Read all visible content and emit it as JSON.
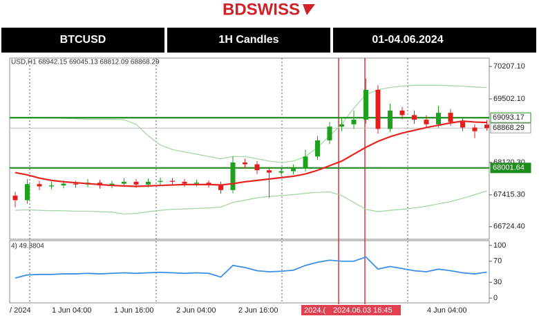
{
  "header": {
    "logo": "BDSWISS",
    "symbol": "BTCUSD",
    "timeframe": "1H Candles",
    "dates": "01-04.06.2024"
  },
  "chart_data": [
    {
      "type": "candlestick",
      "info": "USD,H1  68942.15 69045.13 68812.09 68868.29",
      "open": [
        67400,
        67300,
        67650,
        67600,
        67620,
        67660,
        67640,
        67680,
        67620,
        67660,
        67700,
        67640,
        67700,
        67720,
        67700,
        67660,
        67680,
        67640,
        67520,
        68120,
        68080,
        67950,
        67900,
        67930,
        67990,
        68250,
        68600,
        68900,
        68950,
        69050,
        69700,
        68850,
        69250,
        69150,
        69050,
        68950,
        69200,
        69000,
        68880,
        68942.15
      ],
      "high": [
        67480,
        67760,
        67720,
        67700,
        67730,
        67720,
        67760,
        67740,
        67720,
        67780,
        67760,
        67770,
        67790,
        67780,
        67760,
        67750,
        67730,
        67700,
        68250,
        68200,
        68150,
        68020,
        68000,
        68080,
        68400,
        68700,
        69000,
        69100,
        69250,
        69950,
        69800,
        69400,
        69330,
        69250,
        69150,
        69350,
        69280,
        69100,
        68950,
        69045.13
      ],
      "low": [
        67150,
        67220,
        67520,
        67540,
        67560,
        67570,
        67580,
        67550,
        67560,
        67590,
        67570,
        67580,
        67630,
        67630,
        67590,
        67600,
        67570,
        67440,
        67450,
        67990,
        67870,
        67350,
        67830,
        67860,
        67920,
        68180,
        68520,
        68800,
        68850,
        68960,
        68750,
        68780,
        69060,
        68960,
        68870,
        68880,
        68920,
        68800,
        68650,
        68812.09
      ],
      "close": [
        67300,
        67650,
        67600,
        67620,
        67660,
        67640,
        67680,
        67620,
        67660,
        67700,
        67640,
        67700,
        67720,
        67700,
        67660,
        67680,
        67640,
        67520,
        68120,
        68080,
        67950,
        67900,
        67930,
        67990,
        68250,
        68600,
        68900,
        68950,
        69050,
        69700,
        68850,
        69250,
        69150,
        69050,
        68950,
        69200,
        69000,
        68880,
        68800,
        68868.29
      ],
      "up_color": "#1fa01f",
      "down_color": "#e0201e",
      "series": [
        {
          "color": "#e8231f",
          "values": [
            67900,
            67850,
            67780,
            67730,
            67700,
            67680,
            67660,
            67640,
            67620,
            67610,
            67600,
            67610,
            67620,
            67630,
            67640,
            67640,
            67640,
            67630,
            67660,
            67700,
            67730,
            67760,
            67790,
            67820,
            67870,
            67950,
            68050,
            68150,
            68300,
            68450,
            68580,
            68680,
            68760,
            68820,
            68880,
            68930,
            68980,
            69020,
            69000,
            68990
          ]
        },
        {
          "color": "#9fd49f",
          "values": [
            69100,
            69100,
            69100,
            69090,
            69080,
            69070,
            69060,
            69060,
            69060,
            69050,
            68950,
            68700,
            68500,
            68400,
            68350,
            68300,
            68250,
            68200,
            68250,
            68250,
            68200,
            68150,
            68120,
            68150,
            68250,
            68450,
            68700,
            68950,
            69300,
            69600,
            69700,
            69750,
            69780,
            69800,
            69800,
            69800,
            69790,
            69780,
            69760,
            69750
          ]
        },
        {
          "color": "#9fd49f",
          "values": [
            67080,
            67090,
            67080,
            67070,
            67070,
            67060,
            67060,
            67050,
            67040,
            67000,
            67010,
            67050,
            67080,
            67100,
            67110,
            67120,
            67130,
            67150,
            67250,
            67300,
            67350,
            67380,
            67400,
            67420,
            67450,
            67470,
            67480,
            67400,
            67250,
            67100,
            67050,
            67080,
            67100,
            67130,
            67170,
            67220,
            67270,
            67340,
            67420,
            67500
          ]
        }
      ],
      "levels": [
        {
          "value": 69093.17,
          "color": "#1e8c1e"
        },
        {
          "value": 68001.64,
          "color": "#1e8c1e"
        }
      ],
      "last_price": 68868.29,
      "ylim": [
        66450,
        70390
      ],
      "yticks": [
        {
          "value": 70207.1,
          "label": "70207.10"
        },
        {
          "value": 69502.1,
          "label": "69502.10"
        },
        {
          "value": 68120.3,
          "label": "68120.30"
        },
        {
          "value": 67415.3,
          "label": "67415.30"
        },
        {
          "value": 66724.4,
          "label": "66724.40"
        }
      ],
      "x_labels": [
        "/ 2024",
        "1 Jun 04:00",
        "1 Jun 16:00",
        "2 Jun 04:00",
        "2 Jun 16:00",
        "2024.(",
        "2024.06.03 16:45",
        "4 Jun 04:00"
      ]
    },
    {
      "type": "line",
      "title": "4) 49.3804",
      "color": "#3a8ee6",
      "values": [
        38,
        44,
        45,
        45,
        46,
        46,
        47,
        46,
        47,
        48,
        47,
        48,
        49,
        48,
        47,
        48,
        47,
        40,
        62,
        58,
        52,
        50,
        51,
        53,
        62,
        68,
        72,
        70,
        70,
        78,
        55,
        60,
        56,
        52,
        50,
        55,
        52,
        48,
        46,
        49.3804
      ],
      "ylim": [
        -9,
        109
      ],
      "yticks": [
        100,
        70,
        30,
        0
      ]
    }
  ]
}
